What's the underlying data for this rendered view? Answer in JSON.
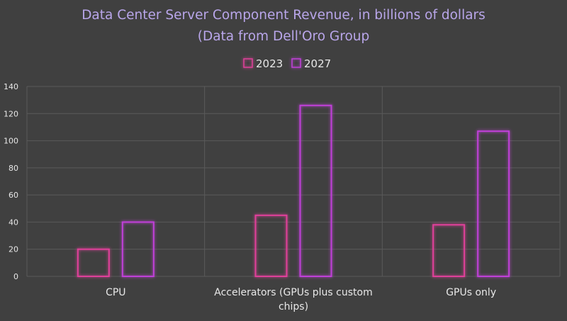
{
  "chart_data": {
    "type": "bar",
    "title_line1": "Data Center Server Component Revenue, in billions of dollars",
    "title_line2": "(Data from Dell'Oro Group",
    "categories": [
      [
        "CPU"
      ],
      [
        "Accelerators (GPUs plus custom",
        "chips)"
      ],
      [
        "GPUs only"
      ]
    ],
    "series": [
      {
        "name": "2023",
        "values": [
          20,
          45,
          38
        ]
      },
      {
        "name": "2027",
        "values": [
          40,
          126,
          107
        ]
      }
    ],
    "yticks": [
      "0",
      "20",
      "40",
      "60",
      "80",
      "100",
      "120",
      "140"
    ],
    "ylim": [
      0,
      140
    ],
    "legend_position": "top",
    "colors": {
      "series": [
        "#e0409a",
        "#c040d8"
      ],
      "glow": [
        "#ff5cb8",
        "#e070ff"
      ],
      "title": "#b9a6ea",
      "axis_text": "#e8e8e8",
      "grid": "#5a5a5a",
      "background": "#404040"
    }
  }
}
